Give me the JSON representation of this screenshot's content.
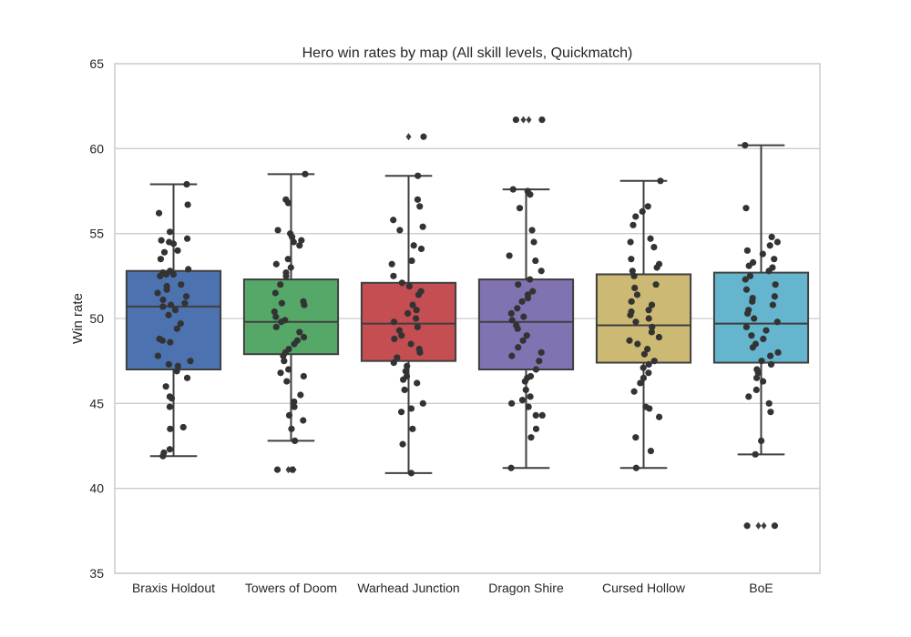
{
  "chart_data": {
    "type": "box",
    "title": "Hero win rates by map (All skill levels, Quickmatch)",
    "xlabel": "",
    "ylabel": "Win rate",
    "ylim": [
      35,
      65
    ],
    "yticks": [
      35,
      40,
      45,
      50,
      55,
      60,
      65
    ],
    "ytick_labels": [
      "35",
      "40",
      "45",
      "50",
      "55",
      "60",
      "65"
    ],
    "grid": true,
    "categories": [
      "Braxis Holdout",
      "Towers of Doom",
      "Warhead Junction",
      "Dragon Shire",
      "Cursed Hollow",
      "BoE"
    ],
    "colors": [
      "#4c72b0",
      "#55a868",
      "#c44e52",
      "#8172b2",
      "#ccb974",
      "#64b5cd"
    ],
    "series": [
      {
        "category": "Braxis Holdout",
        "whisker_low": 41.9,
        "q1": 47.0,
        "median": 50.7,
        "q3": 52.8,
        "whisker_high": 57.9,
        "outliers": [],
        "points": [
          57.9,
          56.7,
          56.2,
          55.1,
          54.7,
          54.6,
          54.5,
          54.4,
          54.0,
          53.9,
          53.5,
          52.9,
          52.8,
          52.7,
          52.6,
          52.6,
          52.5,
          52.0,
          51.9,
          51.7,
          51.5,
          51.3,
          51.1,
          50.9,
          50.8,
          50.7,
          50.5,
          50.2,
          49.7,
          49.4,
          48.8,
          48.7,
          48.6,
          47.8,
          47.5,
          47.3,
          47.2,
          46.9,
          46.5,
          46.0,
          45.4,
          45.3,
          44.8,
          43.6,
          43.5,
          42.3,
          42.1,
          41.9
        ]
      },
      {
        "category": "Towers of Doom",
        "whisker_low": 42.8,
        "q1": 47.9,
        "median": 49.8,
        "q3": 52.3,
        "whisker_high": 58.5,
        "outliers": [
          41.1,
          41.1
        ],
        "points": [
          58.5,
          57.0,
          56.8,
          55.2,
          55.0,
          54.8,
          54.6,
          54.5,
          54.3,
          53.5,
          53.2,
          53.0,
          52.7,
          52.5,
          52.0,
          51.5,
          51.0,
          50.9,
          50.8,
          50.4,
          50.1,
          49.9,
          49.8,
          49.5,
          49.2,
          48.9,
          48.7,
          48.5,
          48.2,
          48.0,
          47.8,
          47.5,
          47.0,
          46.8,
          46.6,
          46.3,
          45.5,
          45.1,
          44.8,
          44.3,
          44.0,
          43.5,
          42.8,
          41.1,
          41.1
        ]
      },
      {
        "category": "Warhead Junction",
        "whisker_low": 40.9,
        "q1": 47.5,
        "median": 49.7,
        "q3": 52.1,
        "whisker_high": 58.4,
        "outliers": [
          60.7
        ],
        "points": [
          60.7,
          58.4,
          57.0,
          56.6,
          55.8,
          55.4,
          55.2,
          54.3,
          54.1,
          53.4,
          53.2,
          52.5,
          52.1,
          51.9,
          51.6,
          51.4,
          50.8,
          50.5,
          50.3,
          50.0,
          49.8,
          49.5,
          49.3,
          49.0,
          48.8,
          48.5,
          48.2,
          48.0,
          47.7,
          47.4,
          47.2,
          46.9,
          46.6,
          46.4,
          46.2,
          45.8,
          45.0,
          44.7,
          44.5,
          43.5,
          42.6,
          40.9
        ]
      },
      {
        "category": "Dragon Shire",
        "whisker_low": 41.2,
        "q1": 47.0,
        "median": 49.8,
        "q3": 52.3,
        "whisker_high": 57.6,
        "outliers": [
          61.7,
          61.7
        ],
        "points": [
          61.7,
          61.7,
          57.6,
          57.5,
          57.3,
          56.5,
          55.2,
          54.5,
          53.7,
          53.4,
          52.8,
          52.3,
          52.0,
          51.6,
          51.4,
          51.2,
          51.0,
          50.6,
          50.3,
          50.1,
          49.9,
          49.6,
          49.4,
          49.0,
          48.7,
          48.3,
          48.0,
          47.8,
          47.5,
          47.0,
          46.6,
          46.5,
          46.3,
          45.8,
          45.4,
          45.2,
          45.0,
          44.8,
          44.3,
          44.3,
          43.5,
          43.0,
          41.2
        ]
      },
      {
        "category": "Cursed Hollow",
        "whisker_low": 41.2,
        "q1": 47.4,
        "median": 49.6,
        "q3": 52.6,
        "whisker_high": 58.1,
        "outliers": [],
        "points": [
          58.1,
          56.6,
          56.3,
          56.0,
          55.5,
          54.7,
          54.5,
          54.2,
          53.5,
          53.2,
          53.0,
          52.8,
          52.5,
          52.0,
          51.8,
          51.4,
          51.0,
          50.8,
          50.5,
          50.4,
          50.2,
          50.0,
          49.8,
          49.5,
          49.2,
          48.9,
          48.7,
          48.5,
          48.2,
          47.9,
          47.5,
          47.3,
          47.1,
          46.8,
          46.5,
          46.2,
          45.7,
          44.8,
          44.7,
          44.2,
          43.0,
          42.2,
          41.2
        ]
      },
      {
        "category": "BoE",
        "whisker_low": 42.0,
        "q1": 47.4,
        "median": 49.7,
        "q3": 52.7,
        "whisker_high": 60.2,
        "outliers": [
          37.8,
          37.8
        ],
        "points": [
          60.2,
          56.5,
          54.8,
          54.5,
          54.3,
          54.0,
          53.8,
          53.5,
          53.3,
          53.1,
          53.0,
          52.8,
          52.5,
          52.3,
          52.0,
          51.7,
          51.3,
          51.2,
          51.0,
          50.8,
          50.5,
          50.3,
          50.0,
          49.8,
          49.5,
          49.3,
          49.0,
          48.8,
          48.5,
          48.3,
          48.0,
          47.8,
          47.5,
          47.3,
          47.0,
          46.8,
          46.5,
          46.3,
          45.8,
          45.4,
          45.0,
          44.5,
          42.8,
          42.0,
          37.8,
          37.8
        ]
      }
    ]
  }
}
